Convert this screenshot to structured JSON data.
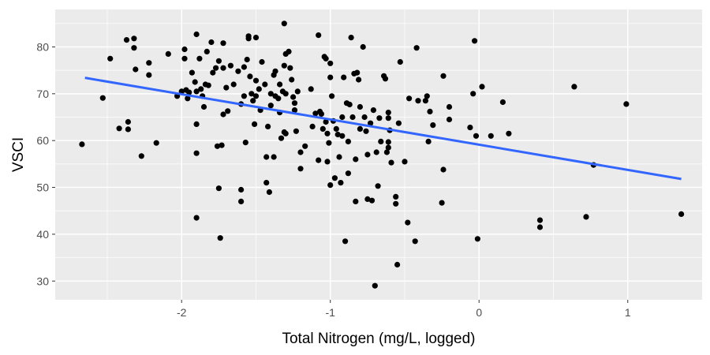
{
  "chart_data": {
    "type": "scatter",
    "title": "",
    "xlabel": "Total Nitrogen (mg/L, logged)",
    "ylabel": "VSCI",
    "xlim": [
      -2.85,
      1.5
    ],
    "ylim": [
      26,
      88
    ],
    "x_ticks": [
      -2,
      -1,
      0,
      1
    ],
    "x_tick_labels": [
      "-2",
      "-1",
      "0",
      "1"
    ],
    "y_ticks": [
      30,
      40,
      50,
      60,
      70,
      80
    ],
    "y_tick_labels": [
      "30",
      "40",
      "50",
      "60",
      "70",
      "80"
    ],
    "grid": true,
    "colors": {
      "panel": "#ebebeb",
      "grid": "#ffffff",
      "points": "#000000",
      "trend": "#3366ff"
    },
    "trend_line": {
      "x": [
        -2.65,
        1.36
      ],
      "y": [
        73.4,
        51.8
      ]
    },
    "points": [
      [
        -2.67,
        59.2
      ],
      [
        -2.53,
        69.1
      ],
      [
        -2.48,
        77.5
      ],
      [
        -2.42,
        62.6
      ],
      [
        -2.37,
        81.5
      ],
      [
        -2.36,
        64.0
      ],
      [
        -2.36,
        62.4
      ],
      [
        -2.32,
        81.8
      ],
      [
        -2.32,
        79.8
      ],
      [
        -2.31,
        75.2
      ],
      [
        -2.27,
        56.7
      ],
      [
        -2.22,
        76.6
      ],
      [
        -2.22,
        74.0
      ],
      [
        -2.17,
        59.5
      ],
      [
        -2.09,
        78.5
      ],
      [
        -2.03,
        69.5
      ],
      [
        -2.0,
        70.5
      ],
      [
        -1.98,
        79.5
      ],
      [
        -1.98,
        77.5
      ],
      [
        -1.97,
        70.8
      ],
      [
        -1.96,
        69.0
      ],
      [
        -1.95,
        70.3
      ],
      [
        -1.93,
        74.5
      ],
      [
        -1.91,
        72.5
      ],
      [
        -1.9,
        82.7
      ],
      [
        -1.9,
        70.5
      ],
      [
        -1.9,
        63.5
      ],
      [
        -1.9,
        57.3
      ],
      [
        -1.9,
        43.5
      ],
      [
        -1.88,
        77.5
      ],
      [
        -1.87,
        71.0
      ],
      [
        -1.86,
        69.5
      ],
      [
        -1.85,
        67.2
      ],
      [
        -1.84,
        72.0
      ],
      [
        -1.83,
        79.0
      ],
      [
        -1.82,
        71.8
      ],
      [
        -1.8,
        81.0
      ],
      [
        -1.79,
        74.5
      ],
      [
        -1.77,
        75.5
      ],
      [
        -1.76,
        58.8
      ],
      [
        -1.75,
        77.0
      ],
      [
        -1.75,
        49.8
      ],
      [
        -1.74,
        39.2
      ],
      [
        -1.73,
        59.0
      ],
      [
        -1.72,
        80.8
      ],
      [
        -1.72,
        75.5
      ],
      [
        -1.72,
        65.6
      ],
      [
        -1.7,
        71.3
      ],
      [
        -1.69,
        66.3
      ],
      [
        -1.67,
        76.0
      ],
      [
        -1.65,
        72.0
      ],
      [
        -1.62,
        74.8
      ],
      [
        -1.6,
        67.8
      ],
      [
        -1.6,
        49.5
      ],
      [
        -1.6,
        47.0
      ],
      [
        -1.58,
        75.7
      ],
      [
        -1.58,
        69.5
      ],
      [
        -1.57,
        59.6
      ],
      [
        -1.56,
        77.3
      ],
      [
        -1.55,
        82.3
      ],
      [
        -1.55,
        81.8
      ],
      [
        -1.54,
        73.7
      ],
      [
        -1.53,
        70.0
      ],
      [
        -1.52,
        68.5
      ],
      [
        -1.51,
        63.5
      ],
      [
        -1.5,
        82.0
      ],
      [
        -1.5,
        72.8
      ],
      [
        -1.5,
        69.5
      ],
      [
        -1.48,
        71.0
      ],
      [
        -1.47,
        66.5
      ],
      [
        -1.46,
        76.8
      ],
      [
        -1.44,
        72.0
      ],
      [
        -1.43,
        56.5
      ],
      [
        -1.43,
        51.0
      ],
      [
        -1.42,
        63.0
      ],
      [
        -1.41,
        49.0
      ],
      [
        -1.4,
        70.0
      ],
      [
        -1.4,
        67.5
      ],
      [
        -1.38,
        74.0
      ],
      [
        -1.38,
        56.5
      ],
      [
        -1.37,
        74.8
      ],
      [
        -1.37,
        69.5
      ],
      [
        -1.35,
        69.0
      ],
      [
        -1.34,
        72.0
      ],
      [
        -1.34,
        66.0
      ],
      [
        -1.33,
        60.5
      ],
      [
        -1.32,
        70.5
      ],
      [
        -1.31,
        85.0
      ],
      [
        -1.31,
        76.0
      ],
      [
        -1.31,
        61.8
      ],
      [
        -1.3,
        78.5
      ],
      [
        -1.3,
        70.0
      ],
      [
        -1.3,
        61.5
      ],
      [
        -1.28,
        79.0
      ],
      [
        -1.27,
        75.5
      ],
      [
        -1.26,
        73.0
      ],
      [
        -1.25,
        69.3
      ],
      [
        -1.24,
        68.0
      ],
      [
        -1.24,
        66.5
      ],
      [
        -1.23,
        62.0
      ],
      [
        -1.22,
        70.5
      ],
      [
        -1.2,
        57.5
      ],
      [
        -1.2,
        54.0
      ],
      [
        -1.17,
        58.8
      ],
      [
        -1.13,
        71.0
      ],
      [
        -1.12,
        63.0
      ],
      [
        -1.1,
        65.8
      ],
      [
        -1.08,
        82.5
      ],
      [
        -1.08,
        55.8
      ],
      [
        -1.07,
        66.2
      ],
      [
        -1.06,
        65.7
      ],
      [
        -1.05,
        62.5
      ],
      [
        -1.04,
        77.9
      ],
      [
        -1.03,
        77.5
      ],
      [
        -1.03,
        64.0
      ],
      [
        -1.02,
        61.5
      ],
      [
        -1.02,
        55.5
      ],
      [
        -1.01,
        59.5
      ],
      [
        -1.0,
        76.5
      ],
      [
        -1.0,
        73.5
      ],
      [
        -1.0,
        50.5
      ],
      [
        -0.99,
        69.5
      ],
      [
        -0.98,
        64.2
      ],
      [
        -0.97,
        52.0
      ],
      [
        -0.96,
        62.5
      ],
      [
        -0.95,
        61.3
      ],
      [
        -0.94,
        56.5
      ],
      [
        -0.93,
        51.0
      ],
      [
        -0.92,
        65.0
      ],
      [
        -0.92,
        61.0
      ],
      [
        -0.91,
        73.5
      ],
      [
        -0.9,
        38.5
      ],
      [
        -0.89,
        68.0
      ],
      [
        -0.88,
        59.8
      ],
      [
        -0.88,
        53.0
      ],
      [
        -0.87,
        67.7
      ],
      [
        -0.86,
        82.0
      ],
      [
        -0.85,
        65.0
      ],
      [
        -0.84,
        74.3
      ],
      [
        -0.83,
        56.0
      ],
      [
        -0.83,
        47.0
      ],
      [
        -0.82,
        74.5
      ],
      [
        -0.81,
        73.0
      ],
      [
        -0.8,
        67.2
      ],
      [
        -0.8,
        62.5
      ],
      [
        -0.78,
        80.0
      ],
      [
        -0.77,
        65.0
      ],
      [
        -0.76,
        62.0
      ],
      [
        -0.75,
        57.0
      ],
      [
        -0.75,
        47.5
      ],
      [
        -0.73,
        63.7
      ],
      [
        -0.72,
        47.2
      ],
      [
        -0.71,
        66.5
      ],
      [
        -0.7,
        29.0
      ],
      [
        -0.69,
        57.5
      ],
      [
        -0.68,
        50.3
      ],
      [
        -0.67,
        64.8
      ],
      [
        -0.66,
        59.8
      ],
      [
        -0.64,
        73.8
      ],
      [
        -0.63,
        73.2
      ],
      [
        -0.62,
        57.5
      ],
      [
        -0.61,
        66.0
      ],
      [
        -0.61,
        64.8
      ],
      [
        -0.61,
        59.7
      ],
      [
        -0.61,
        58.5
      ],
      [
        -0.6,
        62.2
      ],
      [
        -0.59,
        55.3
      ],
      [
        -0.56,
        48.0
      ],
      [
        -0.56,
        46.5
      ],
      [
        -0.55,
        33.5
      ],
      [
        -0.54,
        63.7
      ],
      [
        -0.53,
        76.8
      ],
      [
        -0.5,
        55.5
      ],
      [
        -0.48,
        42.5
      ],
      [
        -0.47,
        69.0
      ],
      [
        -0.43,
        38.5
      ],
      [
        -0.42,
        79.8
      ],
      [
        -0.41,
        68.5
      ],
      [
        -0.36,
        68.5
      ],
      [
        -0.35,
        69.5
      ],
      [
        -0.34,
        59.8
      ],
      [
        -0.33,
        66.2
      ],
      [
        -0.31,
        63.3
      ],
      [
        -0.25,
        46.7
      ],
      [
        -0.24,
        73.8
      ],
      [
        -0.24,
        53.8
      ],
      [
        -0.2,
        67.2
      ],
      [
        -0.2,
        64.5
      ],
      [
        -0.06,
        62.8
      ],
      [
        -0.04,
        70.0
      ],
      [
        -0.03,
        81.3
      ],
      [
        -0.02,
        61.0
      ],
      [
        -0.01,
        39.0
      ],
      [
        0.02,
        71.5
      ],
      [
        0.08,
        61.0
      ],
      [
        0.16,
        68.2
      ],
      [
        0.2,
        61.5
      ],
      [
        0.41,
        43.0
      ],
      [
        0.41,
        41.5
      ],
      [
        0.64,
        71.5
      ],
      [
        0.72,
        43.7
      ],
      [
        0.77,
        54.8
      ],
      [
        0.99,
        67.8
      ],
      [
        1.36,
        44.3
      ]
    ]
  }
}
